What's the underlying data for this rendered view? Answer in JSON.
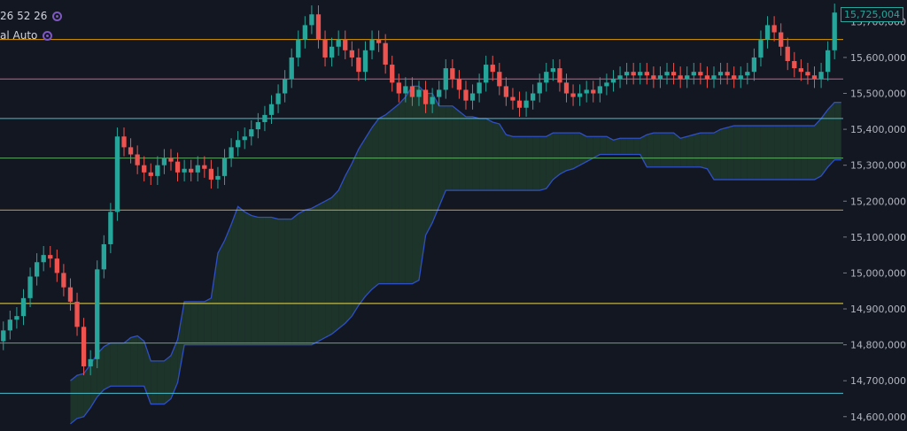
{
  "indicator_legend": {
    "ichimoku_params": "26 52 26",
    "levels_mode": "al Auto"
  },
  "last_price_label": "15,725,004",
  "colors": {
    "background": "#131722",
    "up": "#26a69a",
    "down": "#ef5350",
    "cloud_line": "#2f4fc8",
    "cloud_bull_fill": "#1e3a2c",
    "cloud_bear_fill": "#3a1e24",
    "legend_icon": "#7e57c2"
  },
  "chart_data": {
    "type": "candlestick",
    "title": "",
    "xlabel": "",
    "ylabel": "",
    "ylim": [
      14560000,
      15760000
    ],
    "grid": false,
    "y_ticks": [
      "14,600,000",
      "14,700,000",
      "14,800,000",
      "14,900,000",
      "15,000,000",
      "15,100,000",
      "15,200,000",
      "15,300,000",
      "15,400,000",
      "15,500,000",
      "15,600,000",
      "15,700,000"
    ],
    "horizontal_levels": [
      {
        "value": 15650000,
        "color": "#f7a600"
      },
      {
        "value": 15540000,
        "color": "#f06292"
      },
      {
        "value": 15430000,
        "color": "#4dd0e1"
      },
      {
        "value": 15320000,
        "color": "#66bb6a"
      },
      {
        "value": 15175000,
        "color": "#f7a600"
      },
      {
        "value": 14915000,
        "color": "#ffee58"
      },
      {
        "value": 14805000,
        "color": "#66bb6a"
      },
      {
        "value": 14665000,
        "color": "#4dd0e1"
      }
    ],
    "closes": [
      14840000,
      14870000,
      14880000,
      14930000,
      14990000,
      15030000,
      15050000,
      15040000,
      15000000,
      14960000,
      14920000,
      14850000,
      14740000,
      14760000,
      15010000,
      15080000,
      15170000,
      15380000,
      15350000,
      15330000,
      15300000,
      15280000,
      15270000,
      15300000,
      15320000,
      15310000,
      15280000,
      15290000,
      15280000,
      15300000,
      15290000,
      15260000,
      15270000,
      15320000,
      15350000,
      15370000,
      15380000,
      15400000,
      15420000,
      15440000,
      15470000,
      15500000,
      15540000,
      15600000,
      15650000,
      15690000,
      15720000,
      15650000,
      15600000,
      15630000,
      15650000,
      15620000,
      15600000,
      15560000,
      15620000,
      15650000,
      15640000,
      15580000,
      15530000,
      15500000,
      15520000,
      15490000,
      15510000,
      15470000,
      15490000,
      15510000,
      15570000,
      15540000,
      15510000,
      15480000,
      15500000,
      15530000,
      15580000,
      15560000,
      15520000,
      15490000,
      15480000,
      15460000,
      15480000,
      15500000,
      15530000,
      15560000,
      15570000,
      15530000,
      15500000,
      15490000,
      15500000,
      15510000,
      15500000,
      15520000,
      15530000,
      15540000,
      15550000,
      15560000,
      15550000,
      15560000,
      15550000,
      15540000,
      15550000,
      15560000,
      15550000,
      15540000,
      15550000,
      15560000,
      15550000,
      15540000,
      15550000,
      15560000,
      15550000,
      15540000,
      15550000,
      15560000,
      15600000,
      15650000,
      15690000,
      15670000,
      15630000,
      15590000,
      15570000,
      15560000,
      15550000,
      15540000,
      15560000,
      15620000,
      15725004
    ]
  }
}
